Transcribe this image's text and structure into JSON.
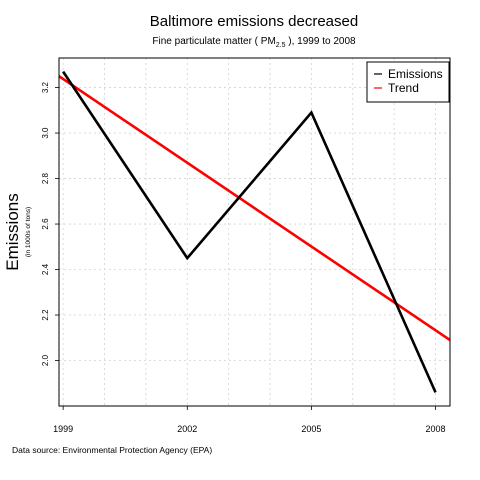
{
  "chart_data": {
    "type": "line",
    "title": "Baltimore emissions decreased",
    "subtitle_prefix": "Fine particulate matter ( PM",
    "subtitle_sub": "2.5",
    "subtitle_suffix": " ), 1999 to 2008",
    "ylabel": "Emissions",
    "ylabel_sub": "(in 1000s of tons)",
    "x": [
      1999,
      2002,
      2005,
      2008
    ],
    "x_tick_labels": [
      "1999",
      "2002",
      "2005",
      "2008"
    ],
    "y_ticks": [
      2.0,
      2.2,
      2.4,
      2.6,
      2.8,
      3.0,
      3.2
    ],
    "y_tick_labels": [
      "2.0",
      "2.2",
      "2.4",
      "2.6",
      "2.8",
      "3.0",
      "3.2"
    ],
    "xlim": [
      1998.9,
      2008.35
    ],
    "ylim": [
      1.8,
      3.33
    ],
    "grid": true,
    "legend_position": "top-right",
    "series": [
      {
        "name": "Emissions",
        "color": "#000000",
        "values": [
          3.27,
          2.45,
          3.09,
          1.86
        ]
      },
      {
        "name": "Trend",
        "color": "#ff0000",
        "line": {
          "x": [
            1998.9,
            2008.35
          ],
          "y": [
            3.25,
            2.09
          ]
        }
      }
    ],
    "source_text": "Data source: Environmental Protection Agency (EPA)"
  }
}
